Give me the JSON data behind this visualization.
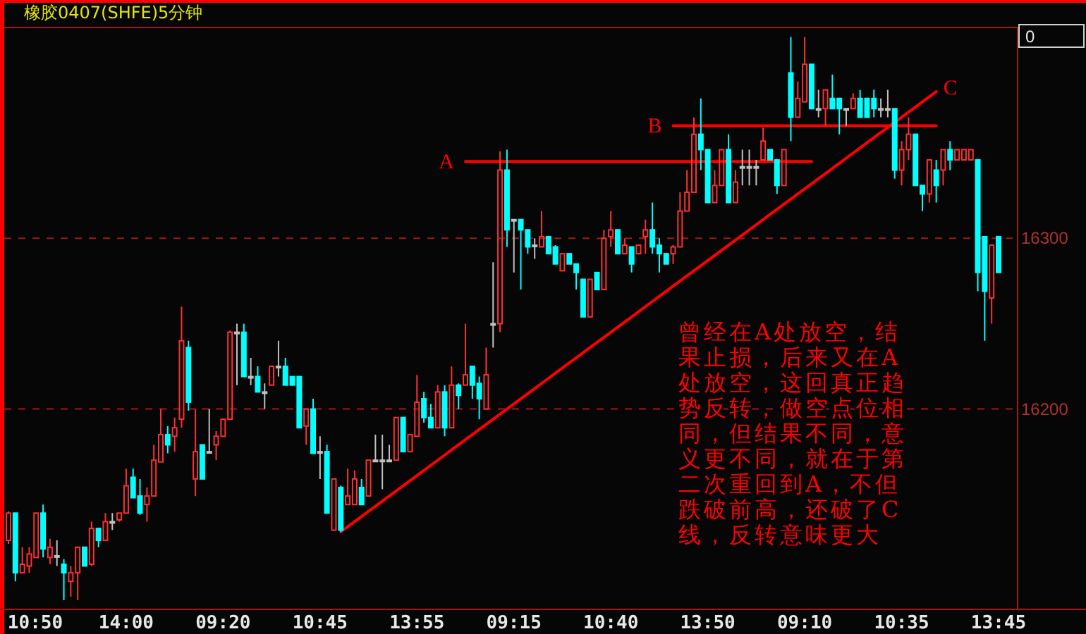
{
  "chart_data": {
    "type": "candlestick",
    "title": "橡胶0407(SHFE)5分钟",
    "categories": [
      null,
      null,
      null,
      "10:50",
      null,
      null,
      null,
      null,
      null,
      null,
      null,
      null,
      null,
      null,
      null,
      null,
      null,
      "14:00",
      null,
      null,
      null,
      null,
      null,
      null,
      null,
      null,
      null,
      null,
      null,
      null,
      null,
      "09:20",
      null,
      null,
      null,
      null,
      null,
      null,
      null,
      null,
      null,
      null,
      null,
      null,
      null,
      "10:45",
      null,
      null,
      null,
      null,
      null,
      null,
      null,
      null,
      null,
      null,
      null,
      null,
      null,
      "13:55",
      null,
      null,
      null,
      null,
      null,
      null,
      null,
      null,
      null,
      null,
      null,
      null,
      null,
      "09:15",
      null,
      null,
      null,
      null,
      null,
      null,
      null,
      null,
      null,
      null,
      null,
      null,
      null,
      "10:40",
      null,
      null,
      null,
      null,
      null,
      null,
      null,
      null,
      null,
      null,
      null,
      null,
      null,
      "13:50",
      null,
      null,
      null,
      null,
      null,
      null,
      null,
      null,
      null,
      null,
      null,
      null,
      null,
      "09:10",
      null,
      null,
      null,
      null,
      null,
      null,
      null,
      null,
      null,
      null,
      null,
      null,
      null,
      "10:35",
      null,
      null,
      null,
      null,
      null,
      null,
      null,
      null,
      null,
      null,
      null,
      null,
      null,
      "13:45"
    ],
    "ohlc": [
      [
        16123,
        16140,
        16121,
        16139
      ],
      [
        16139,
        16139,
        16099,
        16104
      ],
      [
        16104,
        16119,
        16104,
        16109
      ],
      [
        16108,
        16119,
        16104,
        16115
      ],
      [
        16113,
        16139,
        16113,
        16139
      ],
      [
        16139,
        16144,
        16113,
        16118
      ],
      [
        16113,
        16124,
        16109,
        16119
      ],
      [
        16114,
        16123,
        16108,
        16114
      ],
      [
        16109,
        16112,
        16088,
        16104
      ],
      [
        16099,
        16108,
        16090,
        16104
      ],
      [
        16104,
        16119,
        16088,
        16119
      ],
      [
        16119,
        16119,
        16108,
        16108
      ],
      [
        16109,
        16134,
        16108,
        16130
      ],
      [
        16130,
        16130,
        16119,
        16123
      ],
      [
        16123,
        16139,
        16123,
        16134
      ],
      [
        16134,
        16139,
        16129,
        16134
      ],
      [
        16135,
        16139,
        16134,
        16139
      ],
      [
        16139,
        16165,
        16139,
        16155
      ],
      [
        16160,
        16165,
        16148,
        16148
      ],
      [
        16149,
        16159,
        16138,
        16139
      ],
      [
        16144,
        16154,
        16134,
        16149
      ],
      [
        16149,
        16179,
        16149,
        16170
      ],
      [
        16169,
        16200,
        16169,
        16185
      ],
      [
        16185,
        16190,
        16174,
        16179
      ],
      [
        16184,
        16195,
        16175,
        16189
      ],
      [
        16194,
        16260,
        16189,
        16240
      ],
      [
        16236,
        16240,
        16199,
        16204
      ],
      [
        16159,
        16200,
        16149,
        16175
      ],
      [
        16179,
        16179,
        16159,
        16159
      ],
      [
        16175,
        16200,
        16175,
        16175
      ],
      [
        16179,
        16187,
        16170,
        16184
      ],
      [
        16184,
        16194,
        16184,
        16194
      ],
      [
        16194,
        16246,
        16194,
        16245
      ],
      [
        16245,
        16250,
        16214,
        16245
      ],
      [
        16245,
        16250,
        16219,
        16219
      ],
      [
        16219,
        16230,
        16214,
        16219
      ],
      [
        16219,
        16225,
        16210,
        16210
      ],
      [
        16210,
        16215,
        16200,
        16210
      ],
      [
        16214,
        16225,
        16214,
        16225
      ],
      [
        16225,
        16240,
        16219,
        16225
      ],
      [
        16225,
        16230,
        16214,
        16214
      ],
      [
        16219,
        16219,
        16214,
        16214
      ],
      [
        16219,
        16219,
        16189,
        16189
      ],
      [
        16190,
        16200,
        16179,
        16200
      ],
      [
        16200,
        16206,
        16174,
        16174
      ],
      [
        16175,
        16184,
        16159,
        16175
      ],
      [
        16175,
        16179,
        16139,
        16139
      ],
      [
        16129,
        16159,
        16129,
        16159
      ],
      [
        16154,
        16155,
        16128,
        16129
      ],
      [
        16144,
        16165,
        16144,
        16149
      ],
      [
        16144,
        16164,
        16144,
        16159
      ],
      [
        16154,
        16159,
        16144,
        16144
      ],
      [
        16149,
        16170,
        16149,
        16170
      ],
      [
        16170,
        16185,
        16170,
        16170
      ],
      [
        16170,
        16185,
        16153,
        16170
      ],
      [
        16170,
        16179,
        16170,
        16170
      ],
      [
        16170,
        16195,
        16170,
        16195
      ],
      [
        16195,
        16195,
        16175,
        16175
      ],
      [
        16175,
        16185,
        16175,
        16185
      ],
      [
        16184,
        16220,
        16184,
        16204
      ],
      [
        16206,
        16210,
        16192,
        16195
      ],
      [
        16195,
        16203,
        16189,
        16189
      ],
      [
        16189,
        16214,
        16189,
        16210
      ],
      [
        16210,
        16214,
        16184,
        16189
      ],
      [
        16189,
        16225,
        16189,
        16214
      ],
      [
        16214,
        16215,
        16200,
        16208
      ],
      [
        16214,
        16250,
        16214,
        16220
      ],
      [
        16225,
        16225,
        16206,
        16214
      ],
      [
        16215,
        16219,
        16194,
        16206
      ],
      [
        16200,
        16236,
        16200,
        16220
      ],
      [
        16250,
        16286,
        16236,
        16250
      ],
      [
        16250,
        16351,
        16245,
        16340
      ],
      [
        16340,
        16352,
        16295,
        16305
      ],
      [
        16311,
        16311,
        16280,
        16311
      ],
      [
        16311,
        16311,
        16270,
        16305
      ],
      [
        16305,
        16305,
        16291,
        16295
      ],
      [
        16296,
        16300,
        16288,
        16296
      ],
      [
        16295,
        16316,
        16295,
        16301
      ],
      [
        16301,
        16301,
        16291,
        16291
      ],
      [
        16295,
        16296,
        16285,
        16285
      ],
      [
        16281,
        16291,
        16281,
        16291
      ],
      [
        16291,
        16291,
        16285,
        16285
      ],
      [
        16285,
        16285,
        16270,
        16280
      ],
      [
        16276,
        16276,
        16254,
        16254
      ],
      [
        16254,
        16276,
        16254,
        16276
      ],
      [
        16280,
        16280,
        16270,
        16270
      ],
      [
        16270,
        16305,
        16270,
        16300
      ],
      [
        16301,
        16316,
        16295,
        16305
      ],
      [
        16305,
        16305,
        16291,
        16291
      ],
      [
        16291,
        16300,
        16291,
        16296
      ],
      [
        16295,
        16295,
        16280,
        16285
      ],
      [
        16291,
        16296,
        16291,
        16296
      ],
      [
        16301,
        16311,
        16291,
        16305
      ],
      [
        16305,
        16321,
        16291,
        16295
      ],
      [
        16296,
        16300,
        16280,
        16291
      ],
      [
        16291,
        16291,
        16285,
        16285
      ],
      [
        16291,
        16296,
        16285,
        16295
      ],
      [
        16295,
        16327,
        16295,
        16316
      ],
      [
        16316,
        16340,
        16316,
        16327
      ],
      [
        16327,
        16371,
        16327,
        16361
      ],
      [
        16361,
        16382,
        16340,
        16352
      ],
      [
        16352,
        16352,
        16321,
        16321
      ],
      [
        16321,
        16340,
        16321,
        16331
      ],
      [
        16331,
        16352,
        16331,
        16352
      ],
      [
        16352,
        16361,
        16321,
        16321
      ],
      [
        16321,
        16340,
        16321,
        16333
      ],
      [
        16342,
        16352,
        16331,
        16342
      ],
      [
        16342,
        16352,
        16331,
        16342
      ],
      [
        16342,
        16346,
        16331,
        16342
      ],
      [
        16346,
        16365,
        16346,
        16357
      ],
      [
        16352,
        16352,
        16346,
        16346
      ],
      [
        16346,
        16346,
        16326,
        16331
      ],
      [
        16331,
        16352,
        16331,
        16352
      ],
      [
        16397,
        16418,
        16357,
        16371
      ],
      [
        16371,
        16392,
        16371,
        16382
      ],
      [
        16380,
        16418,
        16380,
        16402
      ],
      [
        16402,
        16402,
        16376,
        16376
      ],
      [
        16376,
        16387,
        16371,
        16376
      ],
      [
        16376,
        16387,
        16366,
        16387
      ],
      [
        16382,
        16396,
        16376,
        16376
      ],
      [
        16382,
        16382,
        16361,
        16376
      ],
      [
        16376,
        16376,
        16366,
        16376
      ],
      [
        16376,
        16385,
        16376,
        16382
      ],
      [
        16382,
        16387,
        16371,
        16371
      ],
      [
        16382,
        16382,
        16371,
        16371
      ],
      [
        16382,
        16387,
        16371,
        16376
      ],
      [
        16376,
        16382,
        16371,
        16376
      ],
      [
        16376,
        16387,
        16371,
        16376
      ],
      [
        16376,
        16376,
        16335,
        16340
      ],
      [
        16340,
        16357,
        16331,
        16352
      ],
      [
        16352,
        16371,
        16346,
        16361
      ],
      [
        16361,
        16361,
        16331,
        16331
      ],
      [
        16331,
        16331,
        16316,
        16326
      ],
      [
        16326,
        16346,
        16321,
        16346
      ],
      [
        16340,
        16346,
        16321,
        16331
      ],
      [
        16340,
        16352,
        16331,
        16352
      ],
      [
        16352,
        16357,
        16340,
        16346
      ],
      [
        16346,
        16352,
        16346,
        16352
      ],
      [
        16346,
        16352,
        16346,
        16352
      ],
      [
        16346,
        16352,
        16346,
        16352
      ],
      [
        16346,
        16346,
        16269,
        16280
      ],
      [
        16301,
        16301,
        16240,
        16269
      ],
      [
        16265,
        16296,
        16250,
        16296
      ],
      [
        16301,
        16301,
        16280,
        16280
      ]
    ],
    "colors": [
      "#ff3030",
      "#00ffff",
      "#ff3030",
      "#ff3030",
      "#ff3030",
      "#00ffff",
      "#ff3030",
      "#c0c0c0",
      "#00ffff",
      "#ff3030",
      "#ff3030",
      "#00ffff",
      "#ff3030",
      "#00ffff",
      "#ff3030",
      "#c0c0c0",
      "#ff3030",
      "#ff3030",
      "#00ffff",
      "#00ffff",
      "#ff3030",
      "#ff3030",
      "#ff3030",
      "#00ffff",
      "#ff3030",
      "#ff3030",
      "#00ffff",
      "#ff3030",
      "#00ffff",
      "#c0c0c0",
      "#ff3030",
      "#ff3030",
      "#ff3030",
      "#c0c0c0",
      "#00ffff",
      "#c0c0c0",
      "#00ffff",
      "#c0c0c0",
      "#ff3030",
      "#c0c0c0",
      "#00ffff",
      "#00ffff",
      "#00ffff",
      "#ff3030",
      "#00ffff",
      "#c0c0c0",
      "#00ffff",
      "#ff3030",
      "#00ffff",
      "#ff3030",
      "#ff3030",
      "#00ffff",
      "#ff3030",
      "#c0c0c0",
      "#c0c0c0",
      "#c0c0c0",
      "#ff3030",
      "#00ffff",
      "#ff3030",
      "#ff3030",
      "#00ffff",
      "#00ffff",
      "#ff3030",
      "#00ffff",
      "#ff3030",
      "#00ffff",
      "#ff3030",
      "#00ffff",
      "#00ffff",
      "#ff3030",
      "#c0c0c0",
      "#ff3030",
      "#00ffff",
      "#c0c0c0",
      "#00ffff",
      "#00ffff",
      "#c0c0c0",
      "#ff3030",
      "#00ffff",
      "#00ffff",
      "#ff3030",
      "#00ffff",
      "#00ffff",
      "#00ffff",
      "#ff3030",
      "#00ffff",
      "#ff3030",
      "#ff3030",
      "#00ffff",
      "#ff3030",
      "#00ffff",
      "#ff3030",
      "#ff3030",
      "#00ffff",
      "#00ffff",
      "#00ffff",
      "#ff3030",
      "#ff3030",
      "#ff3030",
      "#ff3030",
      "#00ffff",
      "#00ffff",
      "#ff3030",
      "#ff3030",
      "#00ffff",
      "#ff3030",
      "#c0c0c0",
      "#c0c0c0",
      "#c0c0c0",
      "#ff3030",
      "#00ffff",
      "#00ffff",
      "#ff3030",
      "#00ffff",
      "#ff3030",
      "#ff3030",
      "#00ffff",
      "#c0c0c0",
      "#ff3030",
      "#00ffff",
      "#00ffff",
      "#c0c0c0",
      "#ff3030",
      "#00ffff",
      "#00ffff",
      "#00ffff",
      "#c0c0c0",
      "#c0c0c0",
      "#00ffff",
      "#ff3030",
      "#ff3030",
      "#00ffff",
      "#00ffff",
      "#ff3030",
      "#00ffff",
      "#ff3030",
      "#00ffff",
      "#ff3030",
      "#ff3030",
      "#ff3030",
      "#00ffff",
      "#00ffff",
      "#ff3030",
      "#00ffff"
    ],
    "series": [
      {
        "name": "A",
        "type": "line",
        "color": "#ff0000",
        "values": [
          null,
          null,
          null,
          null,
          null,
          null,
          null,
          null,
          null,
          null,
          null,
          null,
          null,
          null,
          null,
          null,
          null,
          null,
          null,
          null,
          null,
          null,
          null,
          null,
          null,
          null,
          null,
          null,
          null,
          null,
          null,
          null,
          null,
          null,
          null,
          null,
          null,
          null,
          null,
          null,
          null,
          null,
          null,
          null,
          null,
          null,
          null,
          null,
          null,
          null,
          null,
          null,
          null,
          null,
          null,
          null,
          null,
          null,
          null,
          null,
          null,
          null,
          null,
          null,
          null,
          null,
          16345,
          16345,
          16345,
          16345,
          16345,
          16345,
          16345,
          16345,
          16345,
          16345,
          16345,
          16345,
          16345,
          16345,
          16345,
          16345,
          16345,
          16345,
          16345,
          16345,
          16345,
          16345,
          16345,
          16345,
          16345,
          16345,
          16345,
          16345,
          16345,
          16345,
          16345,
          16345,
          16345,
          16345,
          16345,
          16345,
          16345,
          16345,
          16345,
          16345,
          16345,
          16345,
          16345,
          16345,
          16345,
          16345,
          16345,
          16345,
          16345,
          16345,
          16345,
          null,
          null,
          null,
          null,
          null,
          null,
          null,
          null,
          null,
          null,
          null,
          null,
          null,
          null,
          null,
          null,
          null,
          null,
          null,
          null,
          null,
          null,
          null,
          null,
          null,
          null,
          null
        ]
      },
      {
        "name": "B",
        "type": "line",
        "color": "#ff0000",
        "values": [
          null,
          null,
          null,
          null,
          null,
          null,
          null,
          null,
          null,
          null,
          null,
          null,
          null,
          null,
          null,
          null,
          null,
          null,
          null,
          null,
          null,
          null,
          null,
          null,
          null,
          null,
          null,
          null,
          null,
          null,
          null,
          null,
          null,
          null,
          null,
          null,
          null,
          null,
          null,
          null,
          null,
          null,
          null,
          null,
          null,
          null,
          null,
          null,
          null,
          null,
          null,
          null,
          null,
          null,
          null,
          null,
          null,
          null,
          null,
          null,
          null,
          null,
          null,
          null,
          null,
          null,
          null,
          null,
          null,
          null,
          null,
          null,
          null,
          null,
          null,
          null,
          null,
          null,
          null,
          null,
          null,
          null,
          null,
          null,
          null,
          null,
          null,
          null,
          null,
          null,
          null,
          null,
          null,
          null,
          null,
          null,
          16366,
          16366,
          16366,
          16366,
          16366,
          16366,
          16366,
          16366,
          16366,
          16366,
          16366,
          16366,
          16366,
          16366,
          16366,
          16366,
          16366,
          16366,
          16366,
          16366,
          16366,
          16366,
          16366,
          16366,
          16366,
          16366,
          16366,
          16366,
          16366,
          16366,
          16366,
          16366,
          16366,
          16366,
          16366,
          16366,
          16366,
          16366,
          16366,
          null,
          null,
          null,
          null,
          null,
          null,
          null,
          null,
          null
        ]
      },
      {
        "name": "C",
        "type": "line",
        "color": "#ff0000",
        "values": [
          null,
          null,
          null,
          null,
          null,
          null,
          null,
          null,
          null,
          null,
          null,
          null,
          null,
          null,
          null,
          null,
          null,
          null,
          null,
          null,
          null,
          null,
          null,
          null,
          null,
          null,
          null,
          null,
          null,
          null,
          null,
          null,
          null,
          null,
          null,
          null,
          null,
          null,
          null,
          null,
          null,
          null,
          null,
          null,
          null,
          null,
          null,
          null,
          16128,
          16131,
          16134,
          16137,
          16140,
          16143,
          16146,
          16149,
          16152,
          16155,
          16158,
          16161,
          16164,
          16167,
          16170,
          16173,
          16176,
          16179,
          16182,
          16185,
          16188,
          16191,
          16194,
          16197,
          16200,
          16203,
          16206,
          16209,
          16212,
          16215,
          16218,
          16221,
          16224,
          16227,
          16230,
          16233,
          16236,
          16239,
          16242,
          16245,
          16248,
          16251,
          16254,
          16257,
          16260,
          16263,
          16266,
          16269,
          16272,
          16275,
          16278,
          16281,
          16284,
          16287,
          16290,
          16293,
          16296,
          16299,
          16302,
          16305,
          16308,
          16311,
          16314,
          16317,
          16320,
          16323,
          16326,
          16329,
          16332,
          16335,
          16338,
          16341,
          16344,
          16347,
          16350,
          16353,
          16356,
          16359,
          16362,
          16365,
          16368,
          16371,
          16374,
          16377,
          16380,
          16383,
          16386,
          null,
          null,
          null,
          null,
          null,
          null,
          null,
          null,
          null
        ]
      }
    ],
    "ylim": [
      16083,
      16424
    ],
    "yticks": [
      16200,
      16300
    ],
    "grid": "y",
    "annotations": [
      "曾经在A处放空，结果止损，后来又在A处放空，这回真正趋势反转，做空点位相同，但结果不同，意义更不同，就在于第二次重回到A，不但跌破前高，还破了C线，反转意味更大",
      "0"
    ]
  }
}
